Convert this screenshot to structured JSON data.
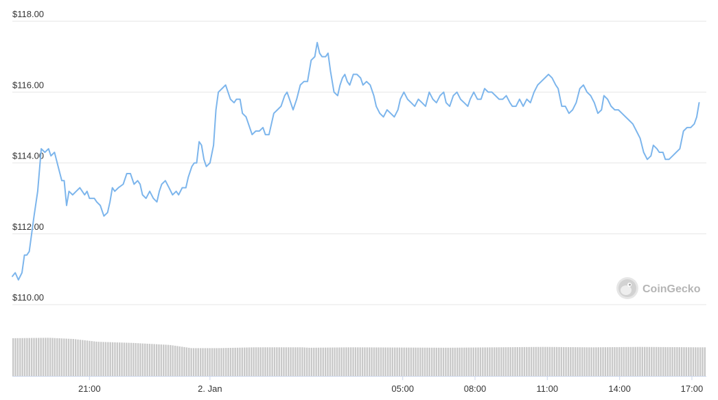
{
  "chart_data": {
    "type": "line",
    "title": "",
    "xlabel": "",
    "ylabel": "",
    "y_tick_labels": [
      "$110.00",
      "$112.00",
      "$114.00",
      "$116.00",
      "$118.00"
    ],
    "y_tick_values": [
      110,
      112,
      114,
      116,
      118
    ],
    "ylim": [
      110,
      118
    ],
    "x_tick_labels": [
      "21:00",
      "2. Jan",
      "05:00",
      "08:00",
      "11:00",
      "14:00",
      "17:00"
    ],
    "x_tick_hours": [
      3.2,
      8.2,
      16.2,
      19.2,
      22.2,
      25.2,
      28.2
    ],
    "xlim_hours": [
      0,
      28.8
    ],
    "grid": true,
    "line_color": "#7cb5ec",
    "volume_color": "#c8c8c8",
    "series": [
      {
        "values": [
          [
            0.0,
            110.8
          ],
          [
            0.12,
            110.9
          ],
          [
            0.25,
            110.7
          ],
          [
            0.4,
            110.9
          ],
          [
            0.5,
            111.4
          ],
          [
            0.6,
            111.4
          ],
          [
            0.7,
            111.5
          ],
          [
            0.8,
            112.0
          ],
          [
            0.9,
            112.5
          ],
          [
            1.05,
            113.2
          ],
          [
            1.2,
            114.4
          ],
          [
            1.35,
            114.3
          ],
          [
            1.5,
            114.4
          ],
          [
            1.6,
            114.2
          ],
          [
            1.75,
            114.3
          ],
          [
            1.9,
            113.9
          ],
          [
            2.05,
            113.5
          ],
          [
            2.15,
            113.5
          ],
          [
            2.25,
            112.8
          ],
          [
            2.35,
            113.2
          ],
          [
            2.5,
            113.1
          ],
          [
            2.65,
            113.2
          ],
          [
            2.8,
            113.3
          ],
          [
            2.9,
            113.2
          ],
          [
            3.0,
            113.1
          ],
          [
            3.1,
            113.2
          ],
          [
            3.2,
            113.0
          ],
          [
            3.4,
            113.0
          ],
          [
            3.5,
            112.9
          ],
          [
            3.65,
            112.8
          ],
          [
            3.8,
            112.5
          ],
          [
            3.95,
            112.6
          ],
          [
            4.05,
            112.9
          ],
          [
            4.15,
            113.3
          ],
          [
            4.25,
            113.2
          ],
          [
            4.4,
            113.3
          ],
          [
            4.6,
            113.4
          ],
          [
            4.75,
            113.7
          ],
          [
            4.9,
            113.7
          ],
          [
            5.05,
            113.4
          ],
          [
            5.2,
            113.5
          ],
          [
            5.3,
            113.4
          ],
          [
            5.4,
            113.1
          ],
          [
            5.55,
            113.0
          ],
          [
            5.7,
            113.2
          ],
          [
            5.85,
            113.0
          ],
          [
            6.0,
            112.9
          ],
          [
            6.1,
            113.2
          ],
          [
            6.2,
            113.4
          ],
          [
            6.35,
            113.5
          ],
          [
            6.5,
            113.3
          ],
          [
            6.65,
            113.1
          ],
          [
            6.8,
            113.2
          ],
          [
            6.9,
            113.1
          ],
          [
            7.05,
            113.3
          ],
          [
            7.2,
            113.3
          ],
          [
            7.3,
            113.6
          ],
          [
            7.45,
            113.9
          ],
          [
            7.55,
            114.0
          ],
          [
            7.65,
            114.0
          ],
          [
            7.75,
            114.6
          ],
          [
            7.85,
            114.5
          ],
          [
            7.95,
            114.1
          ],
          [
            8.05,
            113.9
          ],
          [
            8.2,
            114.0
          ],
          [
            8.35,
            114.5
          ],
          [
            8.45,
            115.5
          ],
          [
            8.55,
            116.0
          ],
          [
            8.7,
            116.1
          ],
          [
            8.85,
            116.2
          ],
          [
            8.95,
            116.0
          ],
          [
            9.05,
            115.8
          ],
          [
            9.2,
            115.7
          ],
          [
            9.3,
            115.8
          ],
          [
            9.45,
            115.8
          ],
          [
            9.55,
            115.4
          ],
          [
            9.7,
            115.3
          ],
          [
            9.85,
            115.0
          ],
          [
            9.95,
            114.8
          ],
          [
            10.1,
            114.9
          ],
          [
            10.25,
            114.9
          ],
          [
            10.4,
            115.0
          ],
          [
            10.5,
            114.8
          ],
          [
            10.65,
            114.8
          ],
          [
            10.75,
            115.1
          ],
          [
            10.85,
            115.4
          ],
          [
            11.0,
            115.5
          ],
          [
            11.15,
            115.6
          ],
          [
            11.3,
            115.9
          ],
          [
            11.4,
            116.0
          ],
          [
            11.55,
            115.7
          ],
          [
            11.65,
            115.5
          ],
          [
            11.8,
            115.8
          ],
          [
            11.95,
            116.2
          ],
          [
            12.1,
            116.3
          ],
          [
            12.25,
            116.3
          ],
          [
            12.4,
            116.9
          ],
          [
            12.55,
            117.0
          ],
          [
            12.65,
            117.4
          ],
          [
            12.75,
            117.1
          ],
          [
            12.85,
            117.0
          ],
          [
            13.0,
            117.0
          ],
          [
            13.1,
            117.1
          ],
          [
            13.2,
            116.6
          ],
          [
            13.35,
            116.0
          ],
          [
            13.5,
            115.9
          ],
          [
            13.6,
            116.2
          ],
          [
            13.7,
            116.4
          ],
          [
            13.8,
            116.5
          ],
          [
            13.9,
            116.3
          ],
          [
            14.0,
            116.2
          ],
          [
            14.15,
            116.5
          ],
          [
            14.3,
            116.5
          ],
          [
            14.45,
            116.4
          ],
          [
            14.55,
            116.2
          ],
          [
            14.7,
            116.3
          ],
          [
            14.85,
            116.2
          ],
          [
            15.0,
            115.9
          ],
          [
            15.1,
            115.6
          ],
          [
            15.25,
            115.4
          ],
          [
            15.4,
            115.3
          ],
          [
            15.55,
            115.5
          ],
          [
            15.7,
            115.4
          ],
          [
            15.85,
            115.3
          ],
          [
            16.0,
            115.5
          ],
          [
            16.1,
            115.8
          ],
          [
            16.25,
            116.0
          ],
          [
            16.4,
            115.8
          ],
          [
            16.55,
            115.7
          ],
          [
            16.7,
            115.6
          ],
          [
            16.85,
            115.8
          ],
          [
            17.0,
            115.7
          ],
          [
            17.15,
            115.6
          ],
          [
            17.3,
            116.0
          ],
          [
            17.45,
            115.8
          ],
          [
            17.6,
            115.7
          ],
          [
            17.75,
            115.9
          ],
          [
            17.9,
            116.0
          ],
          [
            18.0,
            115.7
          ],
          [
            18.15,
            115.6
          ],
          [
            18.3,
            115.9
          ],
          [
            18.45,
            116.0
          ],
          [
            18.6,
            115.8
          ],
          [
            18.75,
            115.7
          ],
          [
            18.9,
            115.6
          ],
          [
            19.0,
            115.8
          ],
          [
            19.15,
            116.0
          ],
          [
            19.3,
            115.8
          ],
          [
            19.45,
            115.8
          ],
          [
            19.6,
            116.1
          ],
          [
            19.75,
            116.0
          ],
          [
            19.9,
            116.0
          ],
          [
            20.05,
            115.9
          ],
          [
            20.2,
            115.8
          ],
          [
            20.35,
            115.8
          ],
          [
            20.5,
            115.9
          ],
          [
            20.65,
            115.7
          ],
          [
            20.75,
            115.6
          ],
          [
            20.9,
            115.6
          ],
          [
            21.05,
            115.8
          ],
          [
            21.2,
            115.6
          ],
          [
            21.35,
            115.8
          ],
          [
            21.5,
            115.7
          ],
          [
            21.65,
            116.0
          ],
          [
            21.8,
            116.2
          ],
          [
            21.95,
            116.3
          ],
          [
            22.1,
            116.4
          ],
          [
            22.25,
            116.5
          ],
          [
            22.4,
            116.4
          ],
          [
            22.55,
            116.2
          ],
          [
            22.65,
            116.1
          ],
          [
            22.8,
            115.6
          ],
          [
            22.95,
            115.6
          ],
          [
            23.1,
            115.4
          ],
          [
            23.25,
            115.5
          ],
          [
            23.4,
            115.7
          ],
          [
            23.55,
            116.1
          ],
          [
            23.7,
            116.2
          ],
          [
            23.85,
            116.0
          ],
          [
            24.0,
            115.9
          ],
          [
            24.15,
            115.7
          ],
          [
            24.3,
            115.4
          ],
          [
            24.45,
            115.5
          ],
          [
            24.55,
            115.9
          ],
          [
            24.7,
            115.8
          ],
          [
            24.85,
            115.6
          ],
          [
            25.0,
            115.5
          ],
          [
            25.15,
            115.5
          ],
          [
            25.3,
            115.4
          ],
          [
            25.45,
            115.3
          ],
          [
            25.6,
            115.2
          ],
          [
            25.75,
            115.1
          ],
          [
            25.9,
            114.9
          ],
          [
            26.05,
            114.7
          ],
          [
            26.2,
            114.3
          ],
          [
            26.35,
            114.1
          ],
          [
            26.5,
            114.2
          ],
          [
            26.6,
            114.5
          ],
          [
            26.75,
            114.4
          ],
          [
            26.85,
            114.3
          ],
          [
            27.0,
            114.3
          ],
          [
            27.1,
            114.1
          ],
          [
            27.25,
            114.1
          ],
          [
            27.4,
            114.2
          ],
          [
            27.55,
            114.3
          ],
          [
            27.7,
            114.4
          ],
          [
            27.85,
            114.9
          ],
          [
            28.0,
            115.0
          ],
          [
            28.15,
            115.0
          ],
          [
            28.3,
            115.1
          ],
          [
            28.4,
            115.3
          ],
          [
            28.5,
            115.7
          ]
        ]
      }
    ],
    "volume": {
      "levels": [
        [
          0.0,
          0.95
        ],
        [
          1.5,
          0.96
        ],
        [
          2.5,
          0.93
        ],
        [
          3.5,
          0.86
        ],
        [
          5.0,
          0.83
        ],
        [
          6.5,
          0.78
        ],
        [
          7.4,
          0.7
        ],
        [
          8.5,
          0.7
        ],
        [
          10.0,
          0.72
        ],
        [
          12.0,
          0.72
        ],
        [
          12.3,
          0.71
        ],
        [
          14.0,
          0.72
        ],
        [
          18.0,
          0.71
        ],
        [
          20.0,
          0.72
        ],
        [
          22.0,
          0.73
        ],
        [
          24.0,
          0.72
        ],
        [
          26.0,
          0.73
        ],
        [
          28.5,
          0.72
        ]
      ]
    }
  },
  "watermark": {
    "text": "CoinGecko",
    "icon": "gecko-logo-icon"
  }
}
